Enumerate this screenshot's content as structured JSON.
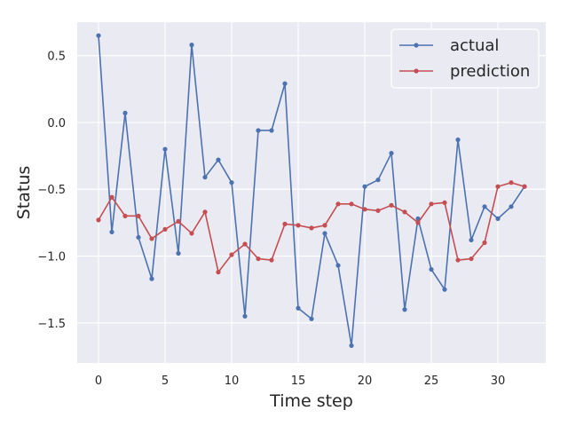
{
  "chart_data": {
    "type": "line",
    "xlabel": "Time step",
    "ylabel": "Status",
    "xlim": [
      -1.6,
      33.6
    ],
    "ylim": [
      -1.8,
      0.75
    ],
    "xticks": [
      0,
      5,
      10,
      15,
      20,
      25,
      30
    ],
    "yticks": [
      -1.5,
      -1.0,
      -0.5,
      0.0,
      0.5
    ],
    "ytick_labels": [
      "−1.5",
      "−1.0",
      "−0.5",
      "0.0",
      "0.5"
    ],
    "grid": true,
    "legend": "top-right",
    "x": [
      0,
      1,
      2,
      3,
      4,
      5,
      6,
      7,
      8,
      9,
      10,
      11,
      12,
      13,
      14,
      15,
      16,
      17,
      18,
      19,
      20,
      21,
      22,
      23,
      24,
      25,
      26,
      27,
      28,
      29,
      30,
      31,
      32
    ],
    "series": [
      {
        "name": "actual",
        "color": "#4c72b0",
        "values": [
          0.65,
          -0.82,
          0.07,
          -0.86,
          -1.17,
          -0.2,
          -0.98,
          0.58,
          -0.41,
          -0.28,
          -0.45,
          -1.45,
          -0.06,
          -0.06,
          0.29,
          -1.39,
          -1.47,
          -0.83,
          -1.07,
          -1.67,
          -0.48,
          -0.43,
          -0.23,
          -1.4,
          -0.72,
          -1.1,
          -1.25,
          -0.13,
          -0.88,
          -0.63,
          -0.72,
          -0.63,
          -0.48
        ]
      },
      {
        "name": "prediction",
        "color": "#c44e52",
        "values": [
          -0.73,
          -0.56,
          -0.7,
          -0.7,
          -0.87,
          -0.8,
          -0.74,
          -0.83,
          -0.67,
          -1.12,
          -0.99,
          -0.91,
          -1.02,
          -1.03,
          -0.76,
          -0.77,
          -0.79,
          -0.77,
          -0.61,
          -0.61,
          -0.65,
          -0.66,
          -0.62,
          -0.67,
          -0.75,
          -0.61,
          -0.6,
          -1.03,
          -1.02,
          -0.9,
          -0.48,
          -0.45,
          -0.48
        ]
      }
    ]
  }
}
